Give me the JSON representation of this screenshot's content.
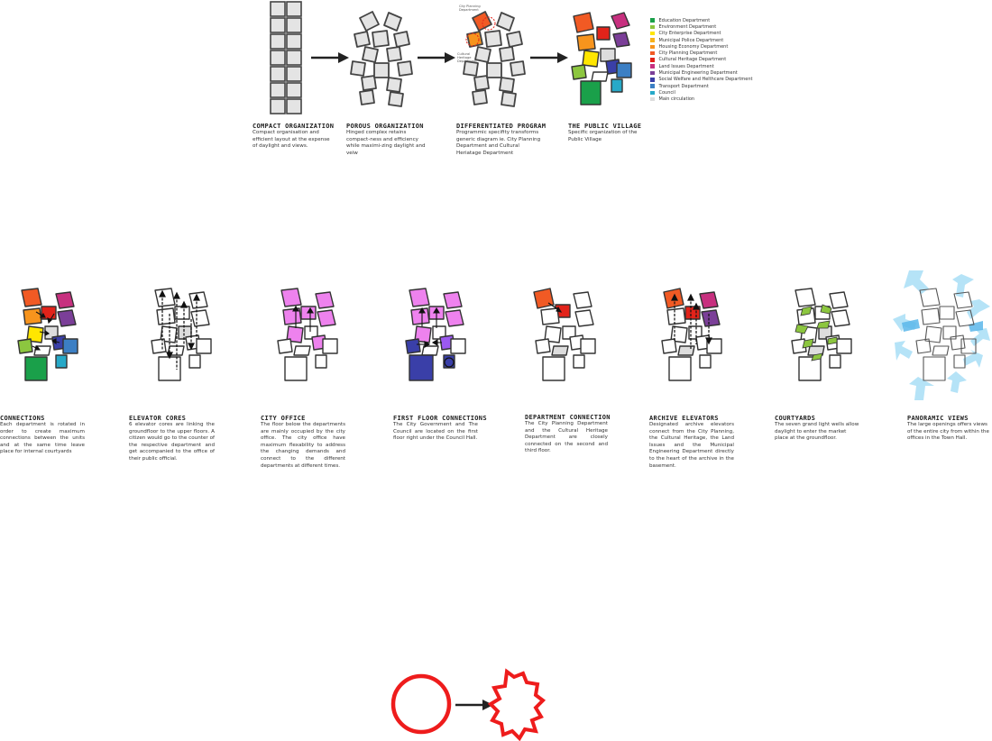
{
  "top_steps": [
    {
      "title": "COMPACT ORGANIZATION",
      "text": "Compact organisation and efficient layout at the expense of daylight and views."
    },
    {
      "title": "POROUS ORGANIZATION",
      "text": "Hinged complex retains compact-ness and efficiency while maximi-zing daylight and veiw"
    },
    {
      "title": "DIFFERENTIATED PROGRAM",
      "text": "Programmic specifity transforms generic diagram ie. City Planning Department and Cultural Heriatage Department"
    },
    {
      "title": "THE PUBLIC VILLAGE",
      "text": "Specific organization of the Public Village"
    }
  ],
  "diff_labels": {
    "top": "City Planning Department",
    "bottom": "Cultural Heritage Department"
  },
  "legend": [
    {
      "label": "Education Department",
      "color": "#1aa04a"
    },
    {
      "label": "Environment Department",
      "color": "#8cc63f"
    },
    {
      "label": "City Enterprise Department",
      "color": "#ffe600"
    },
    {
      "label": "Municipal Police Department",
      "color": "#f7b21b"
    },
    {
      "label": "Housing Economy Department",
      "color": "#f7941d"
    },
    {
      "label": "City Planning Department",
      "color": "#f15a24"
    },
    {
      "label": "Cultural Heritage Department",
      "color": "#e2231a"
    },
    {
      "label": "Land Issues Department",
      "color": "#c7307f"
    },
    {
      "label": "Municipal Engineering Department",
      "color": "#7b3f98"
    },
    {
      "label": "Social Welfare and Helthcare Department",
      "color": "#3a3fa8"
    },
    {
      "label": "Transport Department",
      "color": "#3c7fc4"
    },
    {
      "label": "Council",
      "color": "#27a9c8"
    },
    {
      "label": "Main circulation",
      "color": "#dddddd"
    }
  ],
  "bottom_steps": [
    {
      "title": "CONNECTIONS",
      "text": "Each department is rotated in order to create maximum connections between the units and at the same time leave place for internal courtyards"
    },
    {
      "title": "ELEVATOR CORES",
      "text": "6 elevator cores are linking the groundfloor to the upper floors. A citizen would go to the counter of the respective department and get accompanied to the office of their public official."
    },
    {
      "title": "CITY OFFICE",
      "text": "The floor below the departments are mainly occupied by the city office. The city office have maximum flexability to address the changing demands and connect to the different departments at different times."
    },
    {
      "title": "FIRST FLOOR CONNECTIONS",
      "text": "The City Government and The Council are located on the first floor right under the Council Hall."
    },
    {
      "title": "DEPARTMENT CONNECTION",
      "text": "The City Planning Department and the Cultural Heritage Department are closely connected on the second and third floor."
    },
    {
      "title": "ARCHIVE ELEVATORS",
      "text": "Designated archive elevators connect from the City Planning, the Cultural Heritage, the Land Issues and the Municipal Engineering Department directly to the heart of the archive in the basement."
    },
    {
      "title": "COURTYARDS",
      "text": "The seven grand light wells allow daylight to enter the market place at the groundfloor."
    },
    {
      "title": "PANORAMIC VIEWS",
      "text": "The large openings offers views of the entire city from within the offices in the Town Hall."
    }
  ],
  "colors": {
    "pink": "#ee82ee",
    "bluepurple": "#4040c0",
    "lightblue": "#bfe3f7",
    "lightgreen": "#8cc63f",
    "red_stroke": "#ee1c1c"
  }
}
